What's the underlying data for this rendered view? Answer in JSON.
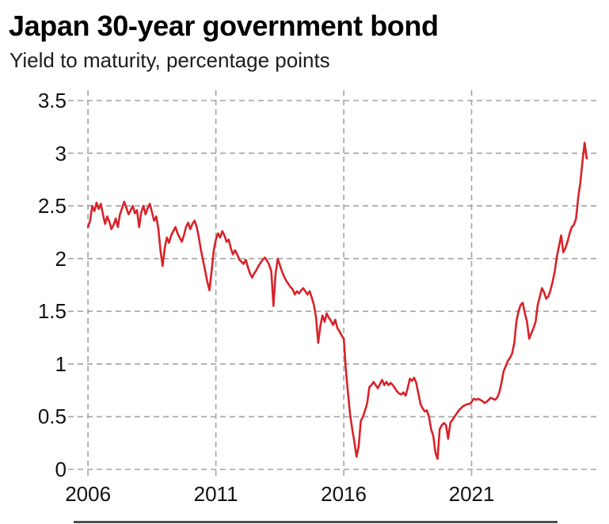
{
  "header": {
    "title": "Japan 30-year government bond",
    "subtitle": "Yield to maturity, percentage points"
  },
  "colors": {
    "background": "#ffffff",
    "line": "#d8232a",
    "grid": "#a3a3a3",
    "text": "#111111"
  },
  "chart_data": {
    "type": "line",
    "title": "Japan 30-year government bond",
    "subtitle": "Yield to maturity, percentage points",
    "xlabel": "",
    "ylabel": "Yield to maturity, percentage points",
    "grid": "dashed",
    "legend": "none",
    "xlim": [
      2005.5,
      2026.0
    ],
    "ylim": [
      0,
      3.5
    ],
    "yticks": [
      0,
      0.5,
      1,
      1.5,
      2,
      2.5,
      3,
      3.5
    ],
    "ytick_labels": [
      "0",
      "0.5",
      "1",
      "1.5",
      "2",
      "2.5",
      "3",
      "3.5"
    ],
    "xticks": [
      2006,
      2011,
      2016,
      2021
    ],
    "xtick_labels": [
      "2006",
      "2011",
      "2016",
      "2021"
    ],
    "line_color": "#d8232a",
    "series": [
      {
        "name": "Japan 30-year government bond yield",
        "start_year": 2006,
        "frequency": "monthly",
        "values": [
          2.3,
          2.36,
          2.5,
          2.45,
          2.53,
          2.47,
          2.52,
          2.42,
          2.33,
          2.4,
          2.35,
          2.28,
          2.32,
          2.38,
          2.3,
          2.42,
          2.48,
          2.54,
          2.48,
          2.42,
          2.46,
          2.5,
          2.43,
          2.46,
          2.3,
          2.44,
          2.5,
          2.42,
          2.48,
          2.52,
          2.44,
          2.36,
          2.4,
          2.28,
          2.08,
          1.93,
          2.1,
          2.2,
          2.15,
          2.22,
          2.26,
          2.3,
          2.24,
          2.2,
          2.16,
          2.22,
          2.3,
          2.34,
          2.28,
          2.33,
          2.36,
          2.3,
          2.2,
          2.08,
          1.98,
          1.88,
          1.78,
          1.7,
          1.88,
          2.08,
          2.18,
          2.24,
          2.2,
          2.26,
          2.22,
          2.16,
          2.18,
          2.1,
          2.04,
          2.08,
          2.04,
          1.99,
          1.97,
          1.95,
          1.99,
          1.92,
          1.86,
          1.82,
          1.86,
          1.89,
          1.93,
          1.96,
          1.99,
          2.01,
          1.98,
          1.94,
          1.88,
          1.55,
          1.86,
          2.0,
          1.94,
          1.88,
          1.83,
          1.79,
          1.76,
          1.73,
          1.71,
          1.66,
          1.69,
          1.67,
          1.7,
          1.72,
          1.69,
          1.66,
          1.69,
          1.63,
          1.56,
          1.44,
          1.2,
          1.36,
          1.46,
          1.4,
          1.48,
          1.44,
          1.41,
          1.37,
          1.42,
          1.34,
          1.31,
          1.27,
          1.24,
          0.94,
          0.72,
          0.52,
          0.38,
          0.26,
          0.12,
          0.22,
          0.46,
          0.5,
          0.56,
          0.63,
          0.78,
          0.8,
          0.83,
          0.8,
          0.77,
          0.81,
          0.85,
          0.8,
          0.83,
          0.8,
          0.82,
          0.8,
          0.77,
          0.74,
          0.72,
          0.71,
          0.73,
          0.7,
          0.77,
          0.86,
          0.84,
          0.87,
          0.82,
          0.72,
          0.62,
          0.58,
          0.55,
          0.56,
          0.5,
          0.38,
          0.32,
          0.16,
          0.1,
          0.38,
          0.42,
          0.44,
          0.42,
          0.29,
          0.44,
          0.47,
          0.5,
          0.53,
          0.56,
          0.58,
          0.6,
          0.61,
          0.62,
          0.62,
          0.64,
          0.67,
          0.66,
          0.67,
          0.66,
          0.65,
          0.63,
          0.64,
          0.66,
          0.68,
          0.67,
          0.66,
          0.68,
          0.73,
          0.82,
          0.93,
          0.98,
          1.03,
          1.06,
          1.1,
          1.2,
          1.4,
          1.5,
          1.56,
          1.58,
          1.48,
          1.4,
          1.24,
          1.29,
          1.34,
          1.4,
          1.56,
          1.64,
          1.72,
          1.68,
          1.62,
          1.64,
          1.7,
          1.78,
          1.88,
          2.02,
          2.12,
          2.22,
          2.06,
          2.1,
          2.16,
          2.24,
          2.3,
          2.32,
          2.38,
          2.58,
          2.72,
          2.92,
          3.1,
          2.95
        ]
      }
    ]
  }
}
